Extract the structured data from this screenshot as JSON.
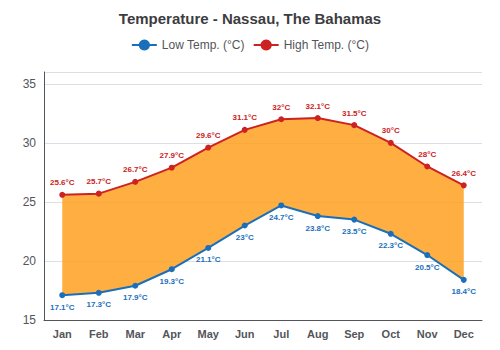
{
  "chart_data": {
    "type": "line",
    "title": "Temperature - Nassau, The Bahamas",
    "categories": [
      "Jan",
      "Feb",
      "Mar",
      "Apr",
      "May",
      "Jun",
      "Jul",
      "Aug",
      "Sep",
      "Oct",
      "Nov",
      "Dec"
    ],
    "series": [
      {
        "name": "Low Temp. (°C)",
        "color": "#1a6fba",
        "marker": "circle",
        "values": [
          17.1,
          17.3,
          17.9,
          19.3,
          21.1,
          23.0,
          24.7,
          23.8,
          23.5,
          22.3,
          20.5,
          18.4
        ],
        "value_labels": [
          "17.1°C",
          "17.3°C",
          "17.9°C",
          "19.3°C",
          "21.1°C",
          "23°C",
          "24.7°C",
          "23.8°C",
          "23.5°C",
          "22.3°C",
          "20.5°C",
          "18.4°C"
        ]
      },
      {
        "name": "High Temp. (°C)",
        "color": "#cc2222",
        "marker": "circle",
        "values": [
          25.6,
          25.7,
          26.7,
          27.9,
          29.6,
          31.1,
          32.0,
          32.1,
          31.5,
          30.0,
          28.0,
          26.4
        ],
        "value_labels": [
          "25.6°C",
          "25.7°C",
          "26.7°C",
          "27.9°C",
          "29.6°C",
          "31.1°C",
          "32°C",
          "32.1°C",
          "31.5°C",
          "30°C",
          "28°C",
          "26.4°C"
        ]
      }
    ],
    "ylim": [
      15,
      36
    ],
    "yticks": [
      15,
      20,
      25,
      30,
      35
    ],
    "grid": true,
    "legend": "top",
    "data_labels": true
  }
}
